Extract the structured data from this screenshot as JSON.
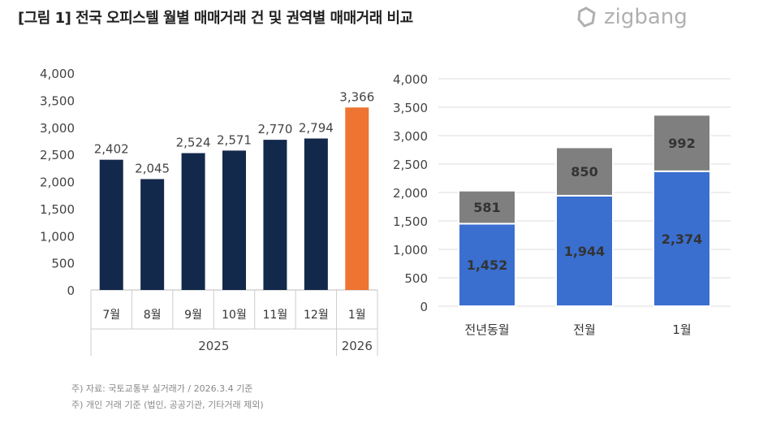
{
  "title": "[그림 1] 전국 오피스텔 월별 매매거래 건 및 권역별 매매거래 비교",
  "logo_text": "zigbang",
  "footnotes": [
    "주) 자료: 국토교통부 실거래가 / 2026.3.4 기준",
    "주) 개인 거래 기준 (법인, 공공기관, 기타거래 제외)"
  ],
  "chart_data": [
    {
      "type": "bar",
      "categories": [
        "7월",
        "8월",
        "9월",
        "10월",
        "11월",
        "12월",
        "1월"
      ],
      "year_groups": [
        {
          "label": "2025",
          "span": 6
        },
        {
          "label": "2026",
          "span": 1
        }
      ],
      "values": [
        2402,
        2045,
        2524,
        2571,
        2770,
        2794,
        3366
      ],
      "data_labels": [
        "2,402",
        "2,045",
        "2,524",
        "2,571",
        "2,770",
        "2,794",
        "3,366"
      ],
      "colors": [
        "#13294b",
        "#13294b",
        "#13294b",
        "#13294b",
        "#13294b",
        "#13294b",
        "#ed7431"
      ],
      "ylim": [
        0,
        4000
      ],
      "yticks": [
        "0",
        "500",
        "1,000",
        "1,500",
        "2,000",
        "2,500",
        "3,000",
        "3,500",
        "4,000"
      ],
      "grid": false
    },
    {
      "type": "stacked-bar",
      "categories": [
        "전년동월",
        "전월",
        "1월"
      ],
      "series": [
        {
          "values": [
            1452,
            1944,
            2374
          ],
          "labels": [
            "1,452",
            "1,944",
            "2,374"
          ],
          "color": "#3a6fcf"
        },
        {
          "values": [
            581,
            850,
            992
          ],
          "labels": [
            "581",
            "850",
            "992"
          ],
          "color": "#7f7f7f"
        }
      ],
      "ylim": [
        0,
        4000
      ],
      "yticks": [
        "0",
        "500",
        "1,000",
        "1,500",
        "2,000",
        "2,500",
        "3,000",
        "3,500",
        "4,000"
      ],
      "grid": true
    }
  ]
}
